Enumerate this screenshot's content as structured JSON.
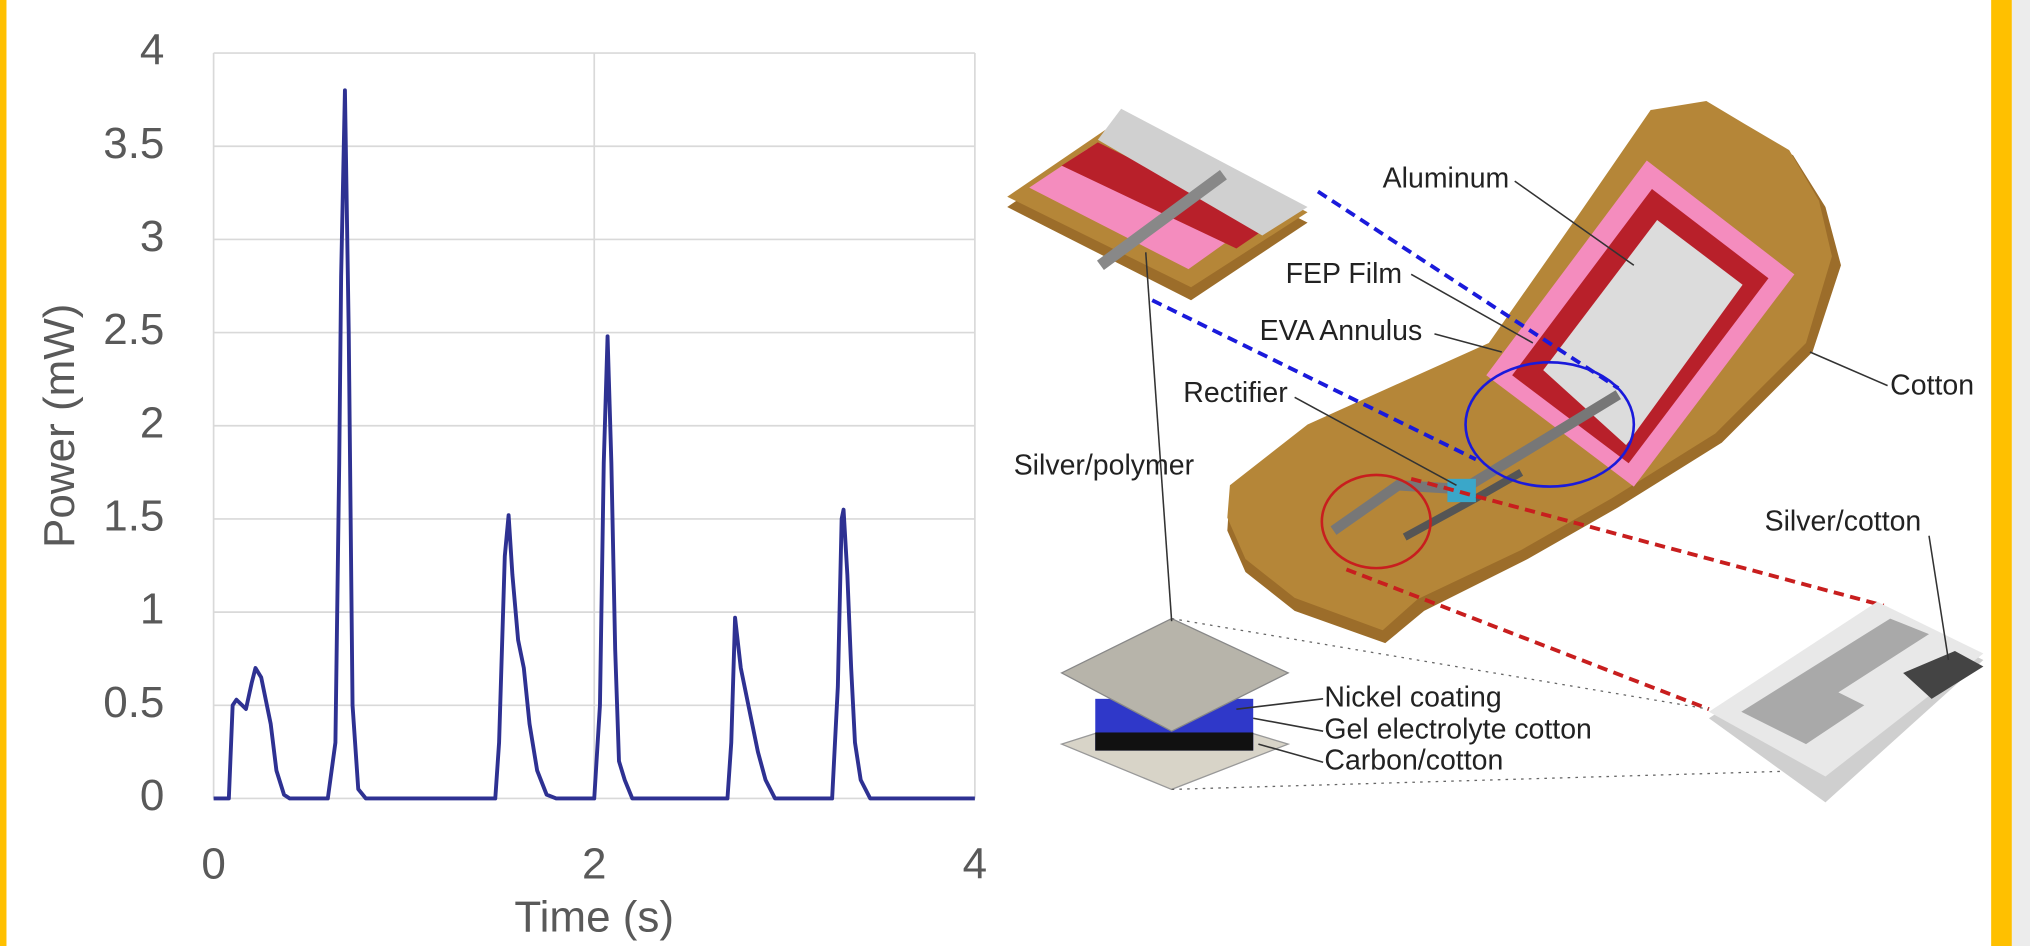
{
  "chart_data": {
    "type": "line",
    "x": [
      0,
      0.08,
      0.1,
      0.12,
      0.15,
      0.17,
      0.2,
      0.22,
      0.25,
      0.3,
      0.33,
      0.37,
      0.4,
      0.6,
      0.64,
      0.66,
      0.67,
      0.69,
      0.71,
      0.73,
      0.76,
      0.8,
      1.48,
      1.5,
      1.53,
      1.55,
      1.57,
      1.6,
      1.63,
      1.66,
      1.7,
      1.75,
      1.8,
      2.0,
      2.03,
      2.05,
      2.07,
      2.09,
      2.11,
      2.13,
      2.16,
      2.2,
      2.7,
      2.72,
      2.74,
      2.77,
      2.82,
      2.86,
      2.9,
      2.95,
      3.25,
      3.28,
      3.3,
      3.31,
      3.33,
      3.35,
      3.37,
      3.4,
      3.45,
      4
    ],
    "values": [
      0,
      0,
      0.5,
      0.53,
      0.5,
      0.48,
      0.62,
      0.7,
      0.65,
      0.4,
      0.15,
      0.02,
      0,
      0,
      0.3,
      1.8,
      2.8,
      3.8,
      2.5,
      0.5,
      0.05,
      0,
      0,
      0.3,
      1.3,
      1.52,
      1.2,
      0.85,
      0.7,
      0.4,
      0.15,
      0.02,
      0,
      0,
      0.5,
      1.8,
      2.48,
      1.8,
      0.8,
      0.2,
      0.1,
      0,
      0,
      0.3,
      0.97,
      0.7,
      0.45,
      0.25,
      0.1,
      0,
      0,
      0.6,
      1.5,
      1.55,
      1.2,
      0.7,
      0.3,
      0.1,
      0,
      0
    ],
    "color": "#2e3192",
    "xlabel": "Time (s)",
    "ylabel": "Power (mW)",
    "xlim": [
      0,
      4
    ],
    "ylim": [
      0,
      4
    ],
    "xticks": [
      0,
      2,
      4
    ],
    "yticks": [
      0,
      0.5,
      1,
      1.5,
      2,
      2.5,
      3,
      3.5,
      4
    ],
    "grid": true
  },
  "diagram": {
    "labels": [
      "Aluminum",
      "FEP Film",
      "EVA Annulus",
      "Rectifier",
      "Cotton",
      "Silver/polymer",
      "Silver/cotton",
      "Nickel coating",
      "Gel electrolyte cotton",
      "Carbon/cotton"
    ]
  }
}
